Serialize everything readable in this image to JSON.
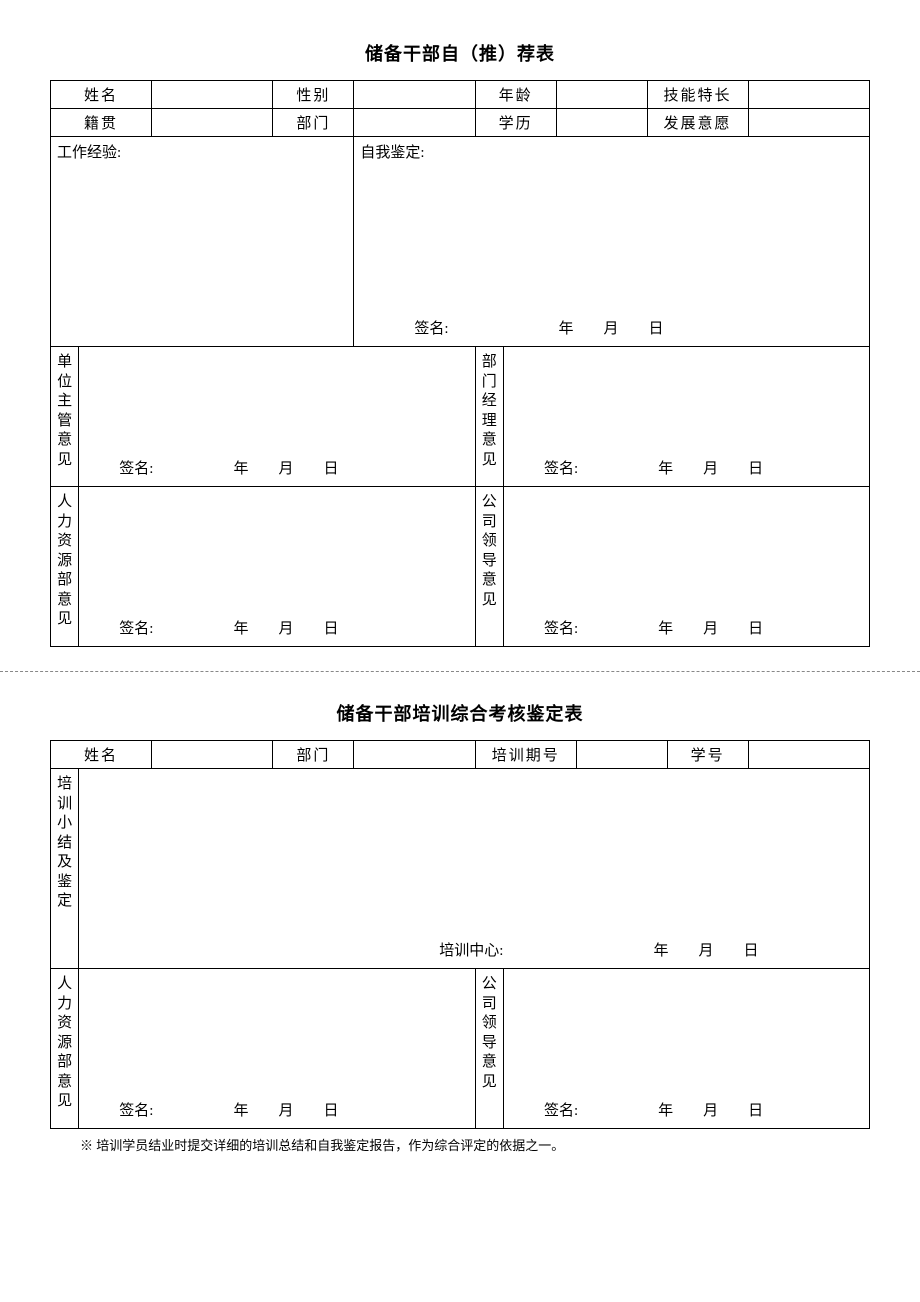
{
  "form1": {
    "title": "储备干部自（推）荐表",
    "row1": {
      "name_label": "姓名",
      "gender_label": "性别",
      "age_label": "年龄",
      "skill_label": "技能特长"
    },
    "row2": {
      "origin_label": "籍贯",
      "dept_label": "部门",
      "edu_label": "学历",
      "wish_label": "发展意愿"
    },
    "exp_label": "工作经验:",
    "self_label": "自我鉴定:",
    "sig_label": "签名:",
    "year": "年",
    "month": "月",
    "day": "日",
    "vlabels": {
      "unit_mgr": "单位主管意见",
      "dept_mgr": "部门经理意见",
      "hr": "人力资源部意见",
      "leader": "公司领导意见"
    }
  },
  "form2": {
    "title": "储备干部培训综合考核鉴定表",
    "row1": {
      "name_label": "姓名",
      "dept_label": "部门",
      "term_label": "培训期号",
      "sid_label": "学号"
    },
    "vlabels": {
      "summary": "培训小结及鉴定",
      "hr": "人力资源部意见",
      "leader": "公司领导意见"
    },
    "center_label": "培训中心:",
    "sig_label": "签名:",
    "year": "年",
    "month": "月",
    "day": "日",
    "footnote": "※ 培训学员结业时提交详细的培训总结和自我鉴定报告，作为综合评定的依据之一。"
  }
}
